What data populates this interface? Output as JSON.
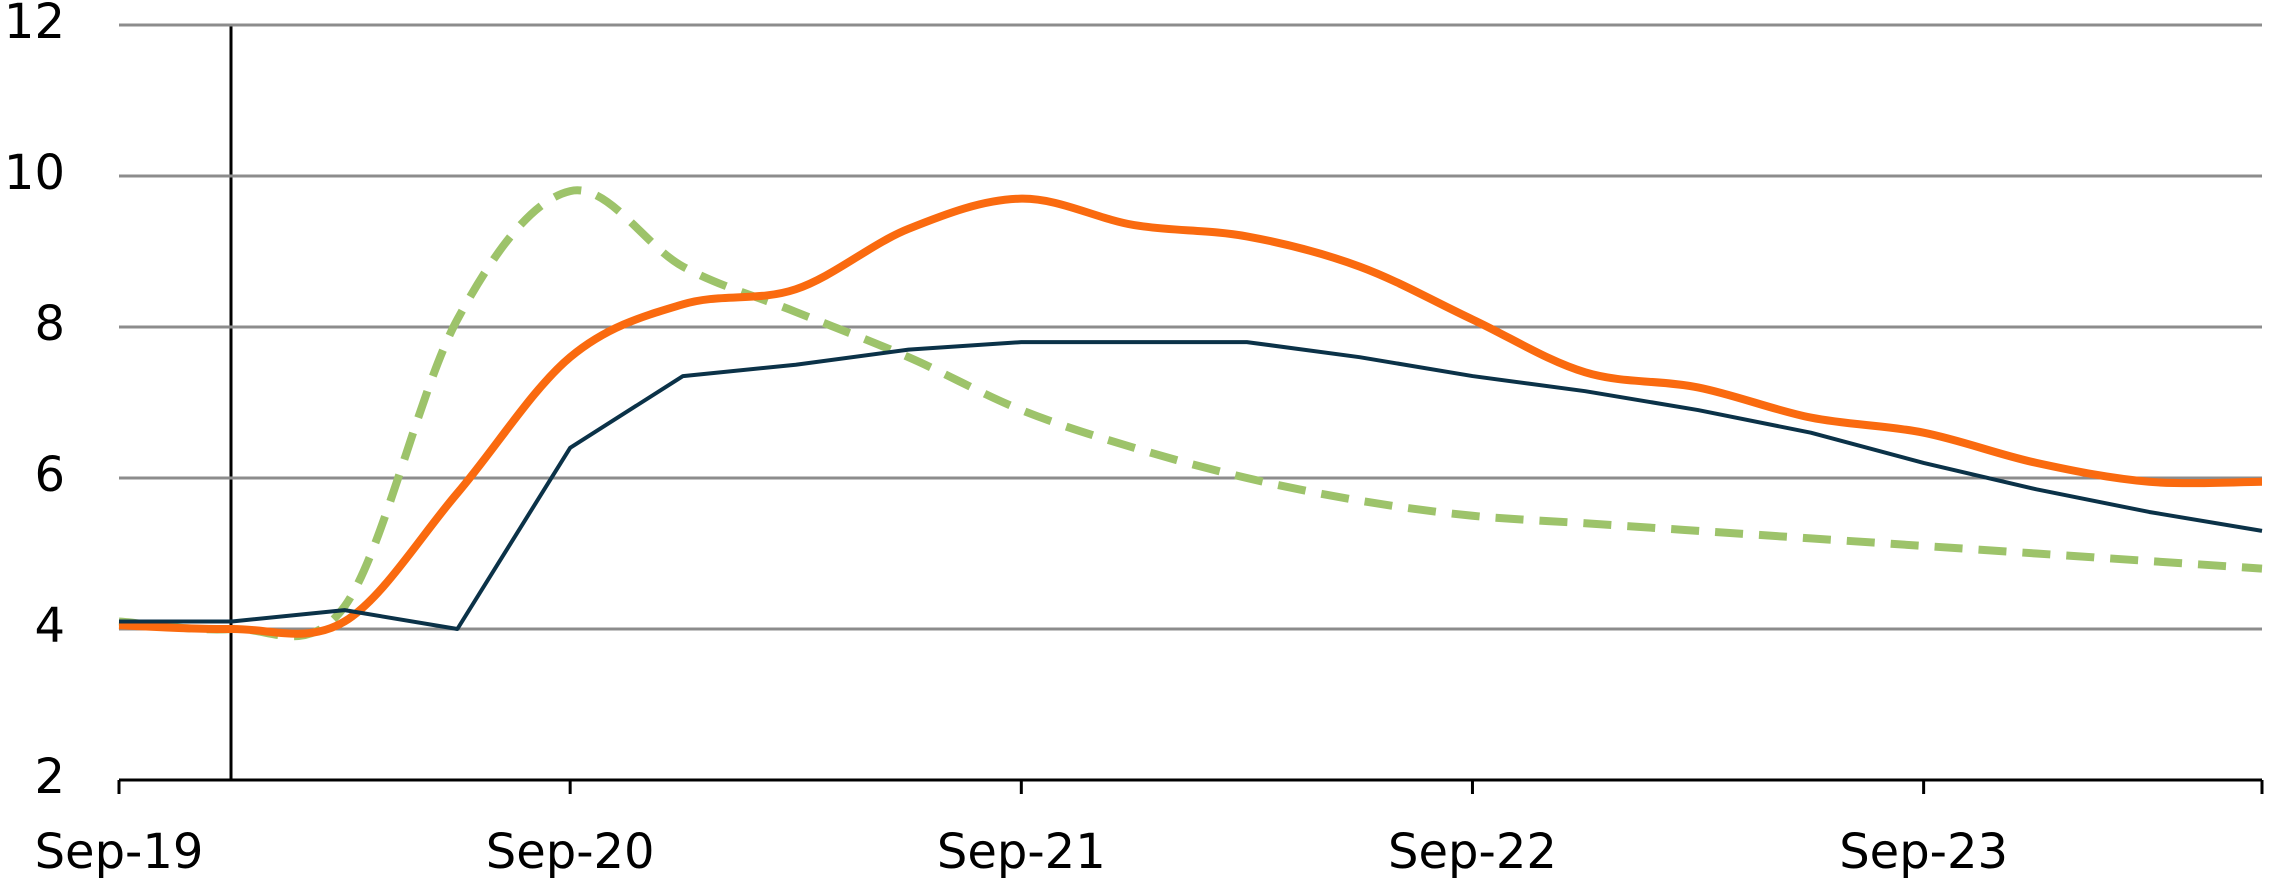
{
  "chart_data": {
    "type": "line",
    "categories": [
      "Sep-19",
      null,
      null,
      null,
      "Sep-20",
      null,
      null,
      null,
      "Sep-21",
      null,
      null,
      null,
      "Sep-22",
      null,
      null,
      null,
      "Sep-23",
      null,
      null,
      null
    ],
    "series": [
      {
        "color": "#0b3248",
        "style": "solid",
        "smooth": false,
        "values": [
          4.1,
          4.1,
          4.25,
          4.0,
          6.4,
          7.35,
          7.5,
          7.7,
          7.8,
          7.8,
          7.8,
          7.6,
          7.35,
          7.15,
          6.9,
          6.6,
          6.2,
          5.85,
          5.55,
          5.3
        ]
      },
      {
        "color": "#fa6a0f",
        "style": "solid",
        "smooth": true,
        "values": [
          4.05,
          4.0,
          4.1,
          5.8,
          7.6,
          8.3,
          8.5,
          9.3,
          9.7,
          9.35,
          9.2,
          8.8,
          8.1,
          7.4,
          7.2,
          6.8,
          6.6,
          6.2,
          5.95,
          5.95
        ]
      },
      {
        "color": "#9dc36a",
        "style": "dashed",
        "smooth": true,
        "values": [
          4.1,
          4.0,
          4.3,
          8.1,
          9.8,
          8.8,
          8.2,
          7.6,
          6.9,
          6.4,
          6.0,
          5.7,
          5.5,
          5.4,
          5.3,
          5.2,
          5.1,
          5.0,
          4.9,
          4.8
        ]
      }
    ],
    "ylim": [
      2,
      12
    ],
    "yticks": [
      2,
      4,
      6,
      8,
      10,
      12
    ],
    "grid": true
  }
}
